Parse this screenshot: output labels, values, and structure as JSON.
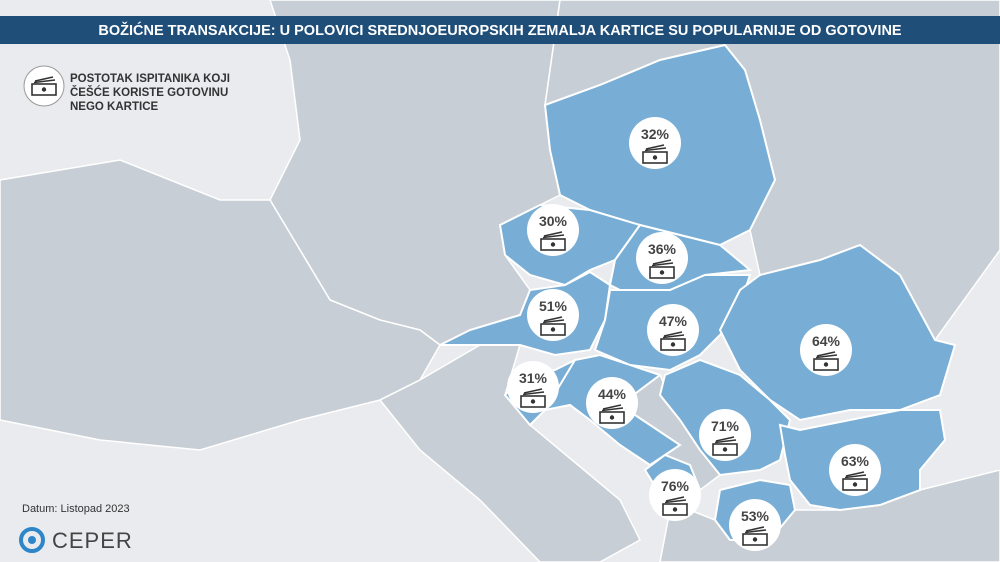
{
  "title": "BOŽIĆNE  TRANSAKCIJE:  U POLOVICI SREDNJOEUROPSKIH  ZEMALJA  KARTICE SU POPULARNIJE  OD GOTOVINE",
  "legend": {
    "lines": [
      "POSTOTAK ISPITANIKA KOJI",
      "ČEŠĆE KORISTE GOTOVINU",
      "NEGO KARTICE"
    ]
  },
  "markers": [
    {
      "label": "32%"
    },
    {
      "label": "30%"
    },
    {
      "label": "36%"
    },
    {
      "label": "51%"
    },
    {
      "label": "47%"
    },
    {
      "label": "64%"
    },
    {
      "label": "31%"
    },
    {
      "label": "44%"
    },
    {
      "label": "71%"
    },
    {
      "label": "63%"
    },
    {
      "label": "76%"
    },
    {
      "label": "53%"
    }
  ],
  "footer": {
    "date": "Datum: Listopad 2023",
    "logo": "CEPER"
  }
}
